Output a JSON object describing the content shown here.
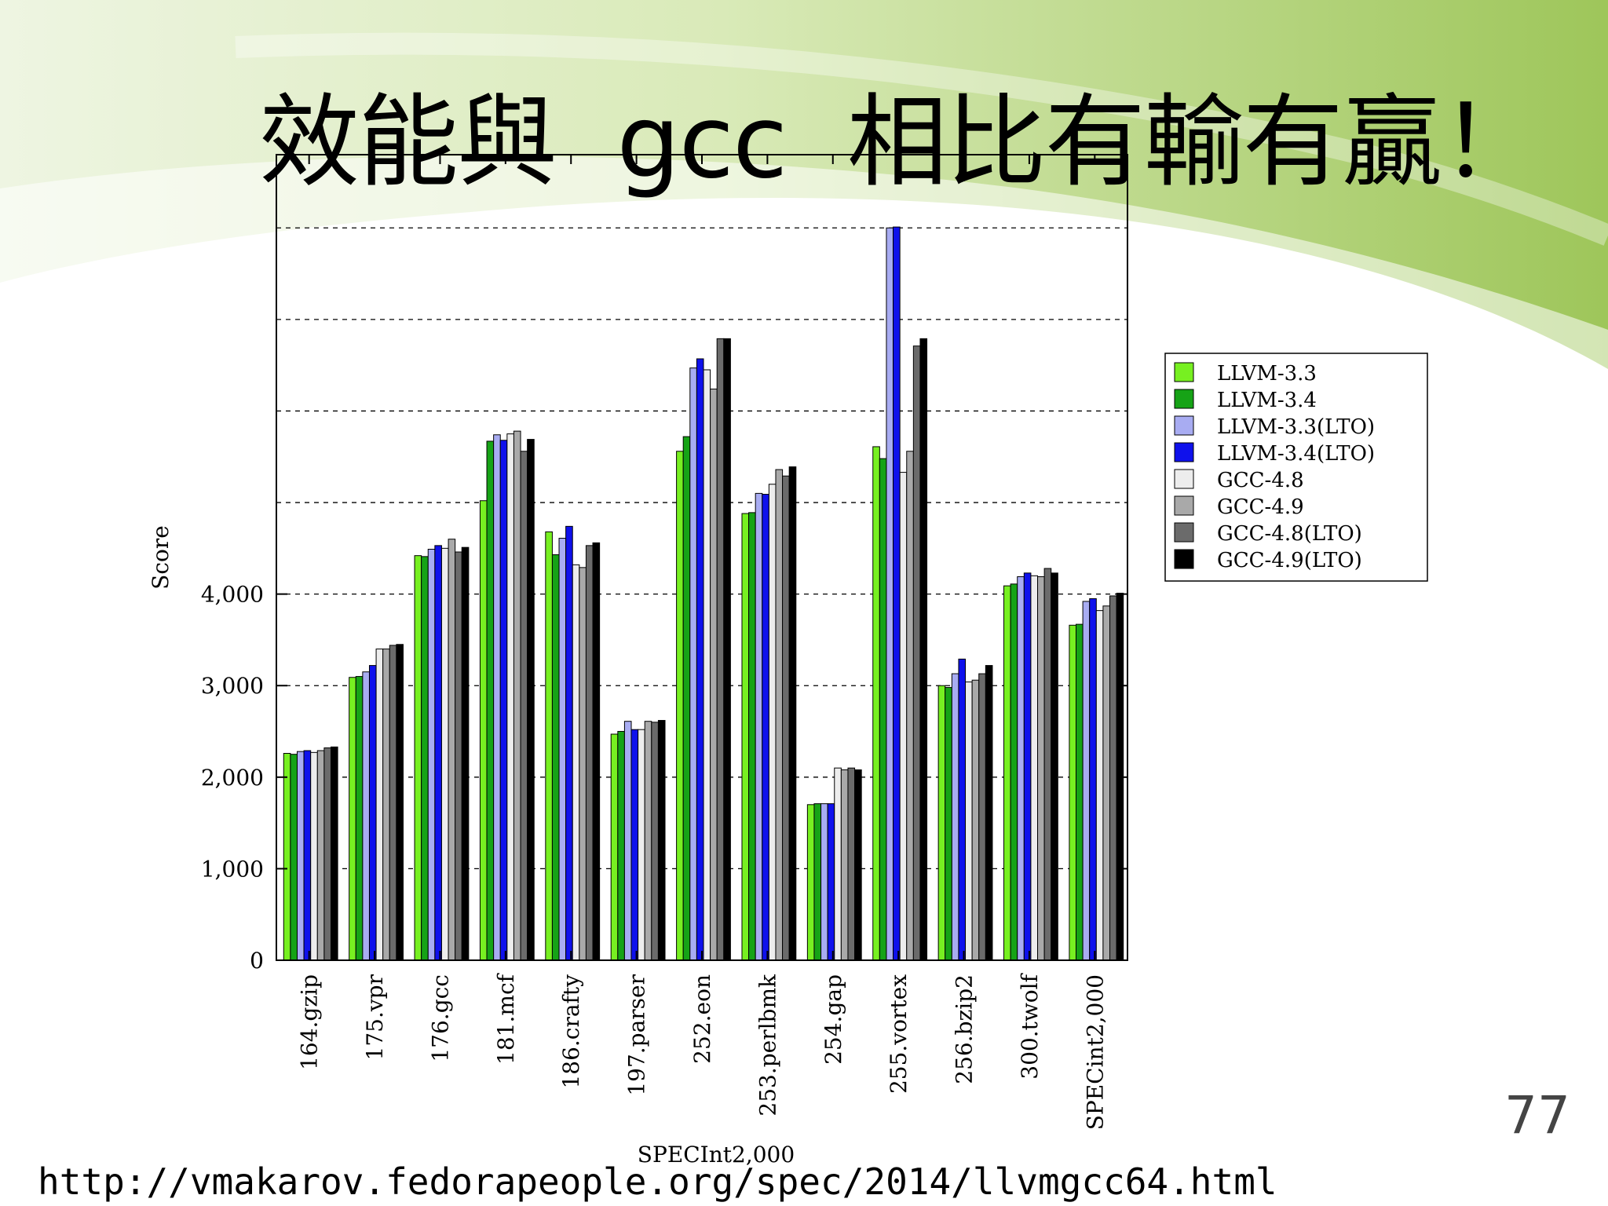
{
  "slide": {
    "title": "效能與  gcc  相比有輸有贏！",
    "page_number": "77",
    "source_url": "http://vmakarov.fedorapeople.org/spec/2014/llvmgcc64.html"
  },
  "chart_data": {
    "type": "bar",
    "title": "",
    "xlabel": "SPECInt2,000",
    "ylabel": "Score",
    "ylim": [
      0,
      8000
    ],
    "yticks": [
      0,
      1000,
      2000,
      3000,
      4000
    ],
    "ytick_labels": [
      "0",
      "1,000",
      "2,000",
      "3,000",
      "4,000"
    ],
    "gridlines": [
      1000,
      2000,
      3000,
      4000,
      5000,
      6000,
      7000,
      8000
    ],
    "grid": true,
    "legend_position": "right",
    "categories": [
      "164.gzip",
      "175.vpr",
      "176.gcc",
      "181.mcf",
      "186.crafty",
      "197.parser",
      "252.eon",
      "253.perlbmk",
      "254.gap",
      "255.vortex",
      "256.bzip2",
      "300.twolf",
      "SPECint2,000"
    ],
    "series": [
      {
        "name": "LLVM-3.3",
        "color": "#77f021",
        "values": [
          2260,
          3090,
          4420,
          5020,
          4680,
          2470,
          5560,
          4880,
          1700,
          5610,
          3000,
          4090,
          3660
        ]
      },
      {
        "name": "LLVM-3.4",
        "color": "#16a316",
        "values": [
          2250,
          3100,
          4410,
          5670,
          4430,
          2500,
          5720,
          4890,
          1710,
          5480,
          2980,
          4110,
          3670
        ]
      },
      {
        "name": "LLVM-3.3(LTO)",
        "color": "#a8acf2",
        "values": [
          2280,
          3150,
          4490,
          5740,
          4610,
          2610,
          6470,
          5100,
          1710,
          8000,
          3130,
          4190,
          3920
        ]
      },
      {
        "name": "LLVM-3.4(LTO)",
        "color": "#0f11ec",
        "values": [
          2290,
          3220,
          4530,
          5680,
          4740,
          2520,
          6570,
          5090,
          1710,
          8010,
          3290,
          4230,
          3950
        ]
      },
      {
        "name": "GCC-4.8",
        "color": "#ededed",
        "values": [
          2270,
          3400,
          4500,
          5750,
          4320,
          2520,
          6450,
          5200,
          2100,
          5330,
          3040,
          4200,
          3820
        ]
      },
      {
        "name": "GCC-4.9",
        "color": "#a9a9a9",
        "values": [
          2290,
          3400,
          4600,
          5780,
          4290,
          2610,
          6240,
          5360,
          2080,
          5560,
          3060,
          4190,
          3870
        ]
      },
      {
        "name": "GCC-4.8(LTO)",
        "color": "#6b6b6b",
        "values": [
          2320,
          3440,
          4460,
          5560,
          4530,
          2600,
          6790,
          5290,
          2100,
          6710,
          3130,
          4280,
          3980
        ]
      },
      {
        "name": "GCC-4.9(LTO)",
        "color": "#000000",
        "values": [
          2330,
          3450,
          4510,
          5690,
          4560,
          2620,
          6790,
          5390,
          2080,
          6790,
          3220,
          4230,
          4010
        ]
      }
    ]
  }
}
